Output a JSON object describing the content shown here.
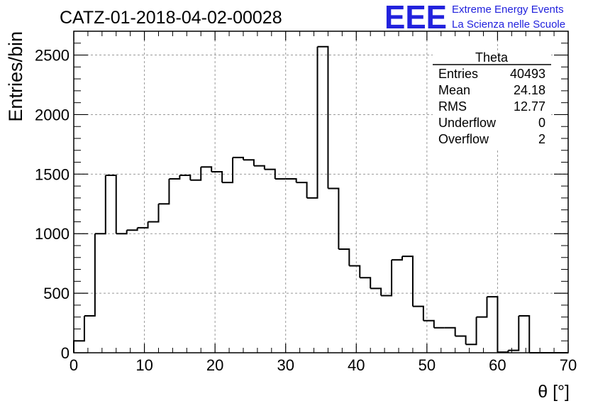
{
  "chart_data": {
    "type": "bar",
    "title": "CATZ-01-2018-04-02-00028",
    "xlabel": "θ [°]",
    "ylabel": "Entries/bin",
    "xlim": [
      0,
      70
    ],
    "ylim": [
      0,
      2700
    ],
    "grid": true,
    "x_ticks": [
      "0",
      "10",
      "20",
      "30",
      "40",
      "50",
      "60",
      "70"
    ],
    "y_ticks": [
      "0",
      "500",
      "1000",
      "1500",
      "2000",
      "2500"
    ],
    "bin_width": 1.5,
    "bin_low_edges": [
      0,
      1.5,
      3,
      4.5,
      6,
      7.5,
      9,
      10.5,
      12,
      13.5,
      15,
      16.5,
      18,
      19.5,
      21,
      22.5,
      24,
      25.5,
      27,
      28.5,
      30,
      31.5,
      33,
      34.5,
      36,
      37.5,
      39,
      40.5,
      42,
      43.5,
      45,
      46.5,
      48,
      49.5,
      51,
      52.5,
      54,
      55.5,
      57,
      58.5,
      60,
      61.5,
      63,
      64.5,
      66,
      67.5,
      69
    ],
    "values": [
      100,
      310,
      1000,
      1490,
      1000,
      1030,
      1050,
      1100,
      1250,
      1460,
      1490,
      1450,
      1560,
      1520,
      1430,
      1640,
      1620,
      1570,
      1540,
      1460,
      1460,
      1430,
      1300,
      2570,
      1380,
      870,
      730,
      630,
      540,
      480,
      780,
      810,
      390,
      270,
      210,
      210,
      140,
      70,
      300,
      470,
      5,
      20,
      310,
      0,
      0,
      0,
      0
    ],
    "stats": {
      "name": "Theta",
      "rows": [
        {
          "label": "Entries",
          "value": "40493"
        },
        {
          "label": "Mean",
          "value": "24.18"
        },
        {
          "label": "RMS",
          "value": "12.77"
        },
        {
          "label": "Underflow",
          "value": "0"
        },
        {
          "label": "Overflow",
          "value": "2"
        }
      ]
    }
  },
  "logo": {
    "mark": "EEE",
    "line1": "Extreme Energy Events",
    "line2": "La Scienza nelle Scuole"
  },
  "colors": {
    "histogram": "#000000",
    "grid": "#999999",
    "logo": "#2222dd"
  }
}
